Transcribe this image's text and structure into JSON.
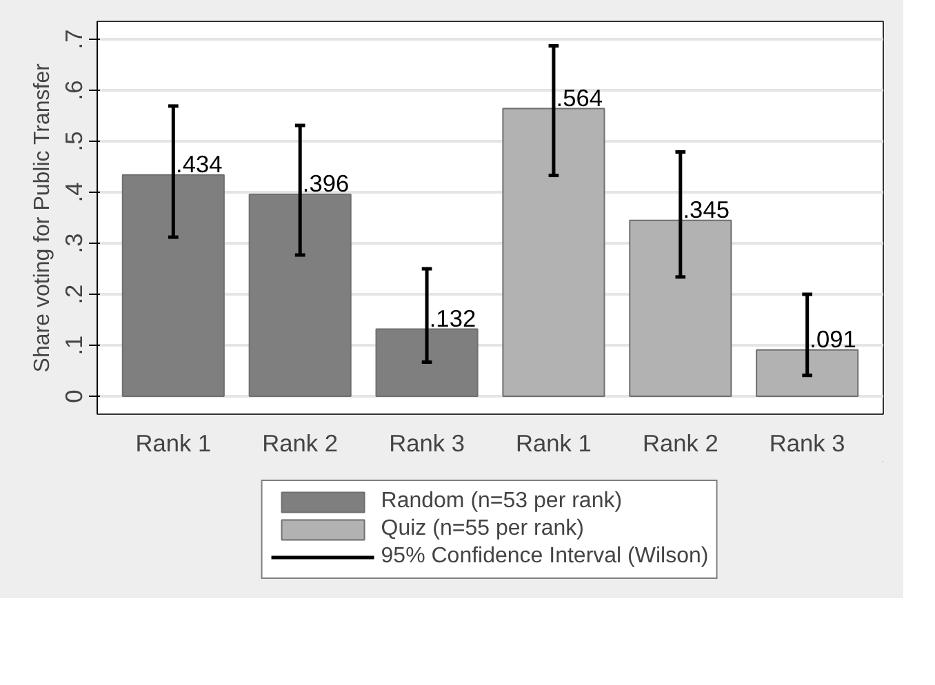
{
  "chart_data": {
    "type": "bar",
    "ylabel": "Share voting for Public Transfer",
    "categories": [
      "Rank 1",
      "Rank 2",
      "Rank 3",
      "Rank 1",
      "Rank 2",
      "Rank 3"
    ],
    "series": [
      {
        "name": "Random (n=53 per rank)",
        "color": "#7f7f7f",
        "values": [
          0.434,
          0.396,
          0.132,
          null,
          null,
          null
        ],
        "errors": [
          [
            0.312,
            0.569
          ],
          [
            0.277,
            0.531
          ],
          [
            0.067,
            0.25
          ],
          null,
          null,
          null
        ],
        "value_labels": [
          ".434",
          ".396",
          ".132",
          null,
          null,
          null
        ]
      },
      {
        "name": "Quiz (n=55 per rank)",
        "color": "#b2b2b2",
        "values": [
          null,
          null,
          null,
          0.564,
          0.345,
          0.091
        ],
        "errors": [
          null,
          null,
          null,
          [
            0.433,
            0.687
          ],
          [
            0.234,
            0.479
          ],
          [
            0.041,
            0.2
          ]
        ],
        "value_labels": [
          null,
          null,
          null,
          ".564",
          ".345",
          ".091"
        ]
      }
    ],
    "annotations": [
      "95% Confidence Interval (Wilson)"
    ],
    "ylim": [
      -0.035,
      0.735
    ],
    "yticks": [
      {
        "value": 0,
        "label": "0"
      },
      {
        "value": 0.1,
        "label": ".1"
      },
      {
        "value": 0.2,
        "label": ".2"
      },
      {
        "value": 0.3,
        "label": ".3"
      },
      {
        "value": 0.4,
        "label": ".4"
      },
      {
        "value": 0.5,
        "label": ".5"
      },
      {
        "value": 0.6,
        "label": ".6"
      },
      {
        "value": 0.7,
        "label": ".7"
      }
    ],
    "grid": "y",
    "legend": "bottom"
  }
}
